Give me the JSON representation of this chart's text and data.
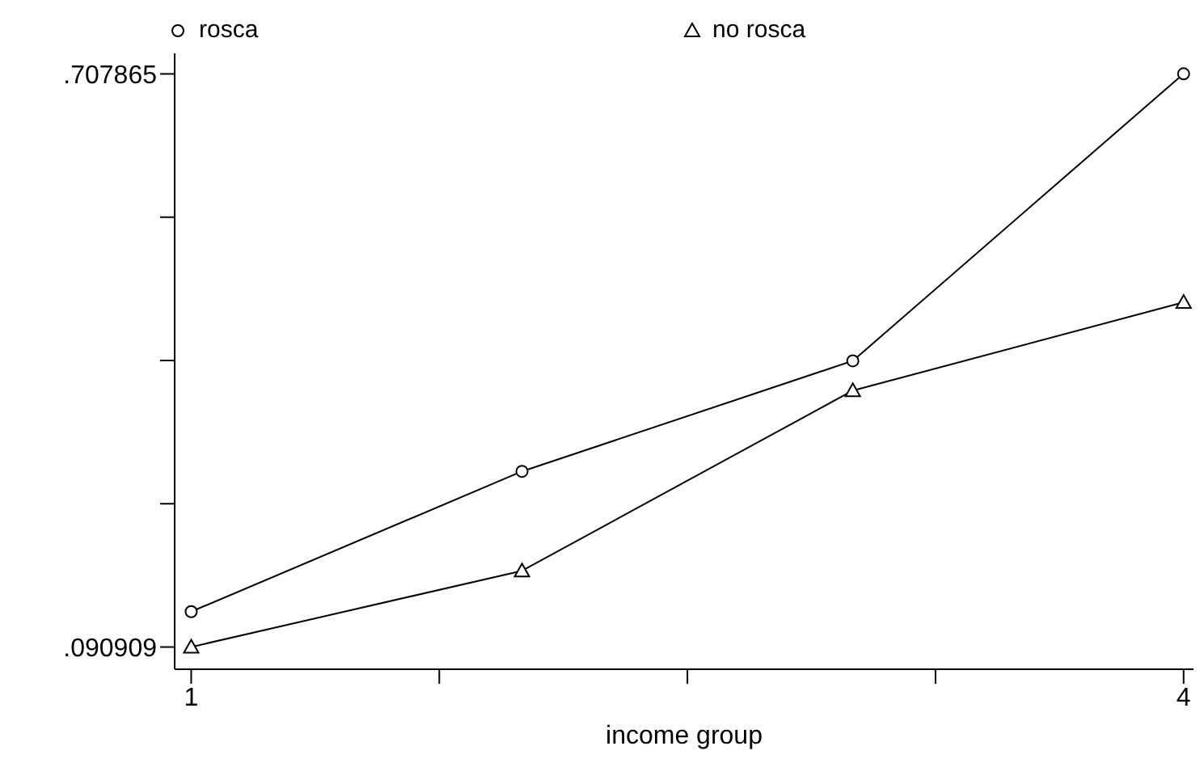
{
  "chart_data": {
    "type": "line",
    "xlabel": "income group",
    "x": [
      1,
      2,
      3,
      4
    ],
    "series": [
      {
        "name": "rosca",
        "color": "#000000",
        "marker": "circle",
        "values": [
          0.129,
          0.28,
          0.399,
          0.708
        ]
      },
      {
        "name": "no rosca",
        "color": "#000000",
        "marker": "triangle",
        "values": [
          0.091,
          0.173,
          0.367,
          0.462
        ]
      }
    ],
    "xlim": [
      0.95,
      4.03
    ],
    "xticks": [
      1,
      {
        "value": 1.75,
        "label": null
      },
      {
        "value": 2.5,
        "label": null
      },
      {
        "value": 3.25,
        "label": null
      },
      4
    ],
    "ylim": [
      0.067,
      0.73
    ],
    "yticks": [
      {
        "value": 0.090909,
        "label": ".090909"
      },
      {
        "value": 0.245148,
        "label": null
      },
      {
        "value": 0.399387,
        "label": null
      },
      {
        "value": 0.553626,
        "label": null
      },
      {
        "value": 0.707865,
        "label": ".707865"
      }
    ],
    "grid": false,
    "legend": "top",
    "line_style": "solid"
  }
}
